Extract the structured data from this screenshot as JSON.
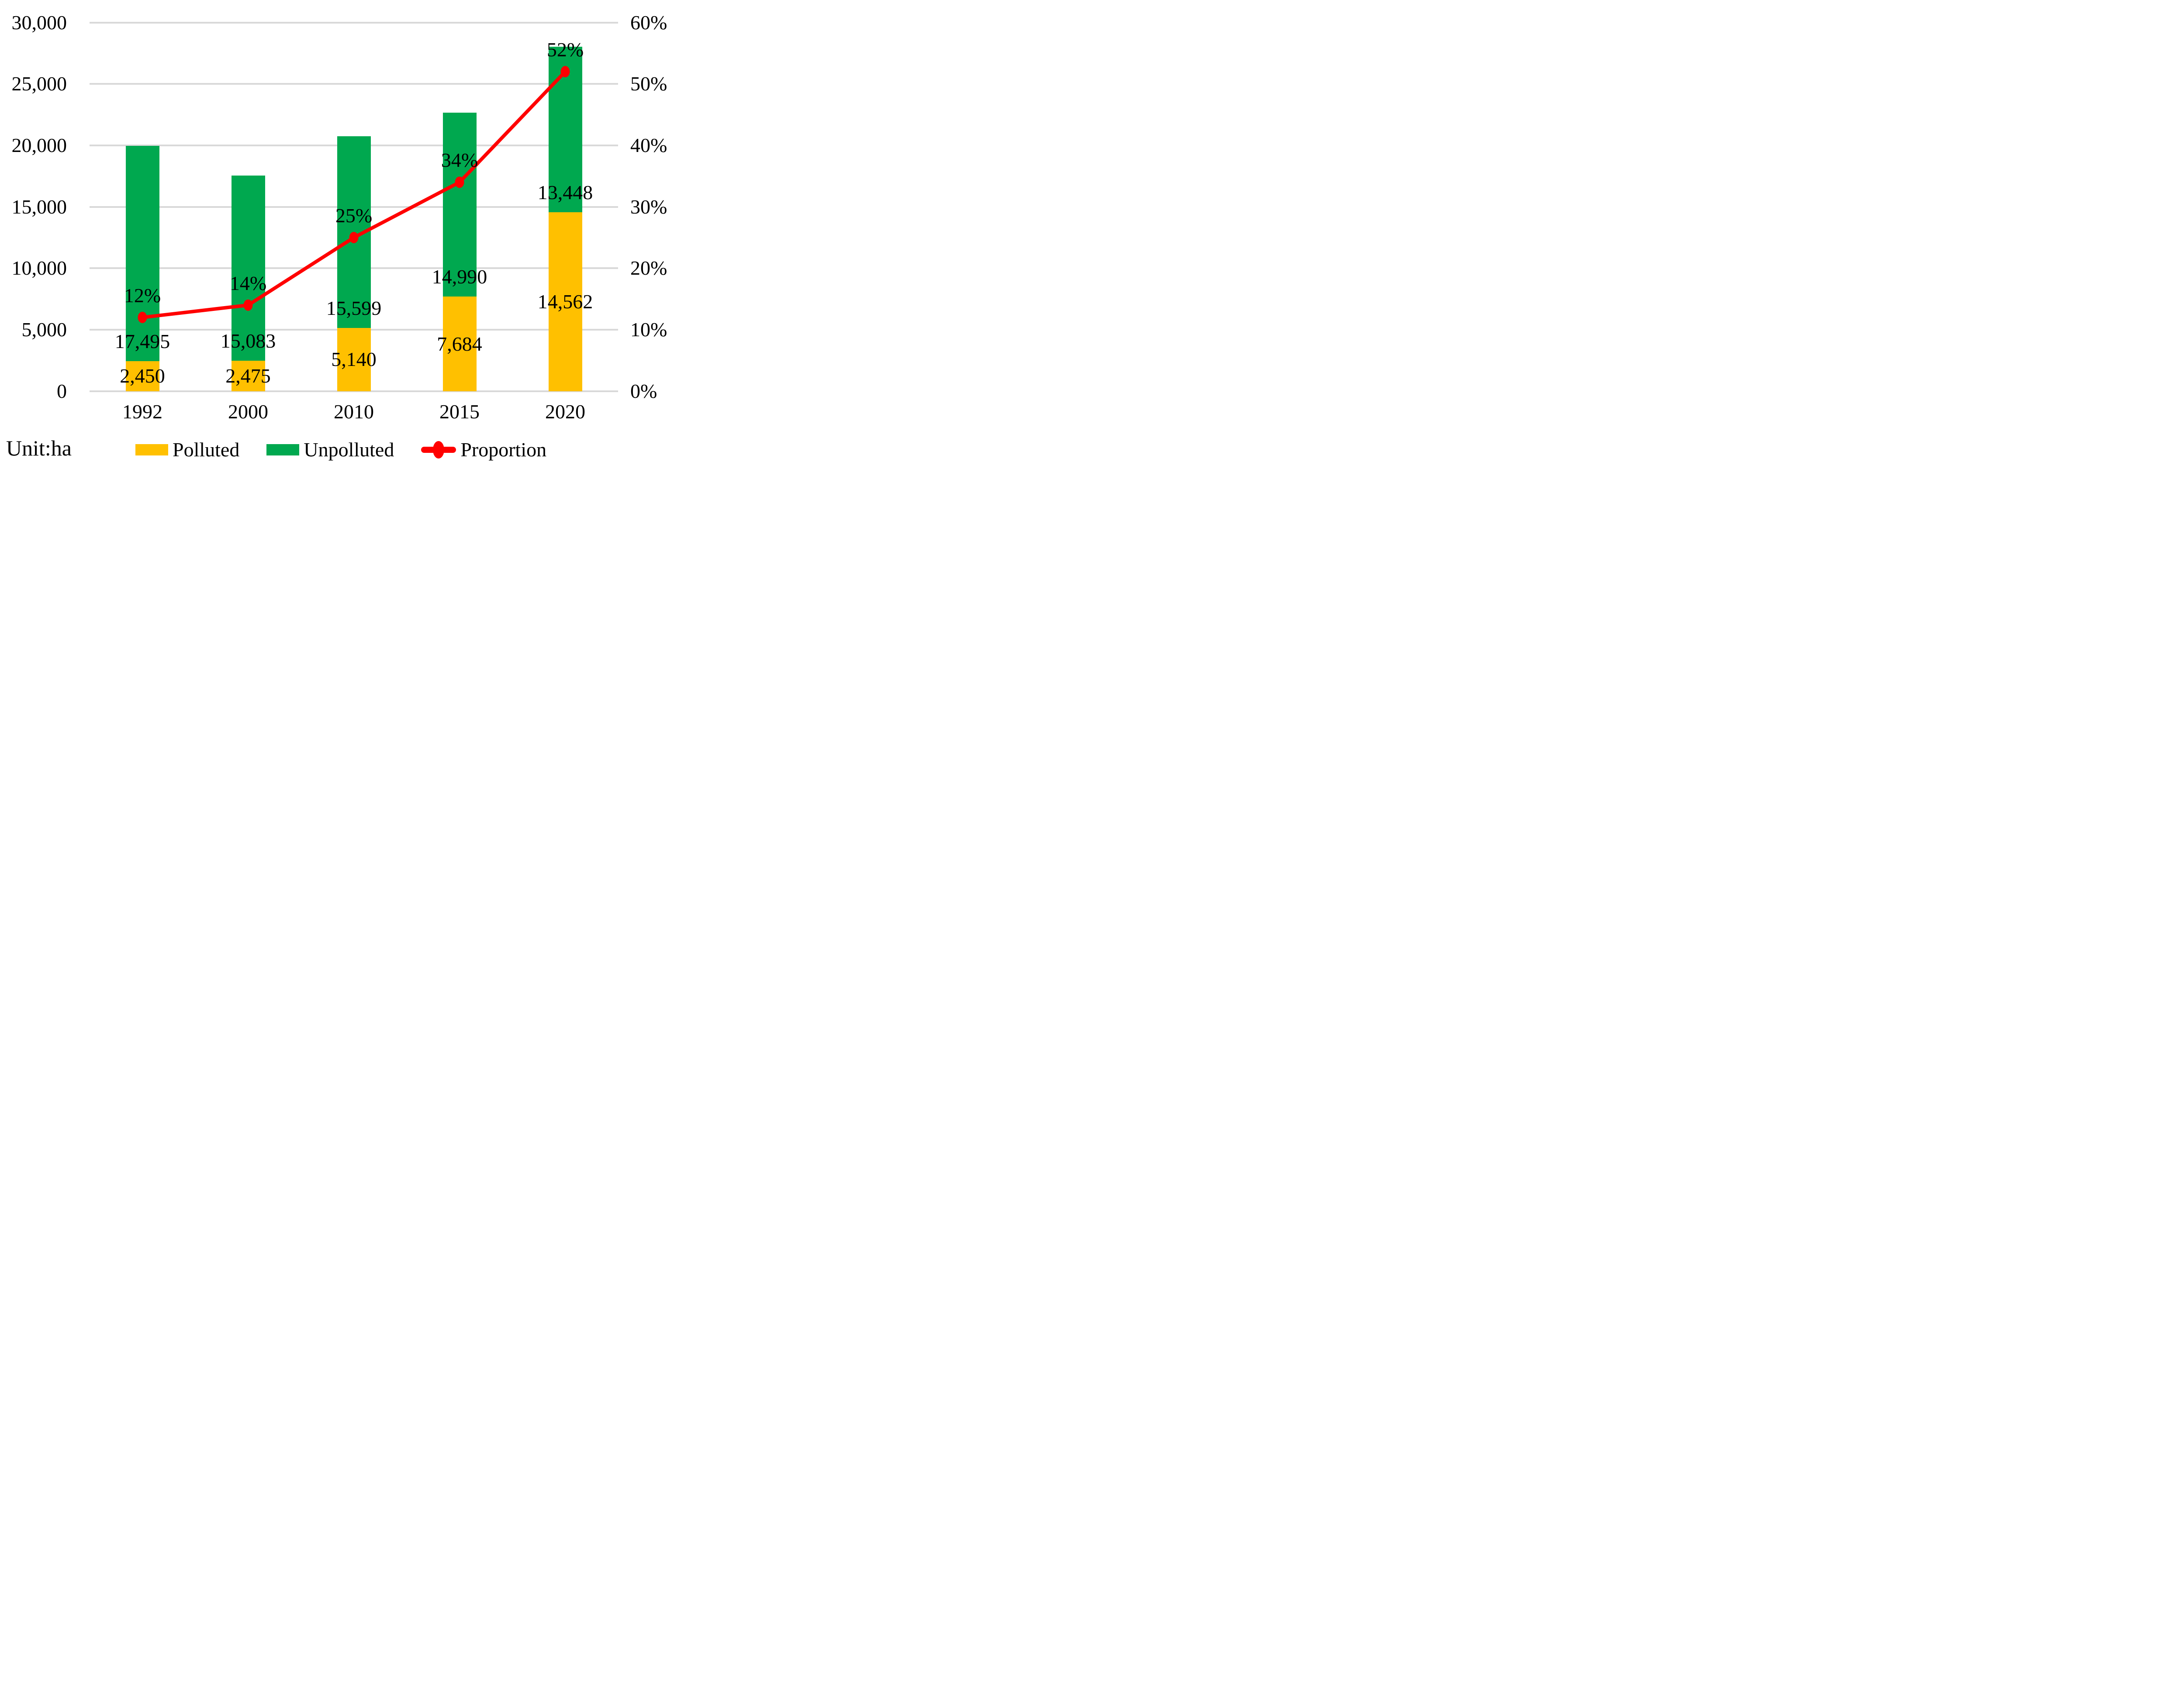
{
  "unit_label": "Unit:ha",
  "colors": {
    "polluted": "#FFC000",
    "unpolluted": "#00A84F",
    "proportion": "#FF0000",
    "gridline": "#D9D9D9",
    "text": "#000000",
    "background": "#FFFFFF"
  },
  "chart_data": {
    "type": "bar-line-combo",
    "categories": [
      "1992",
      "2000",
      "2010",
      "2015",
      "2020"
    ],
    "series": [
      {
        "name": "Polluted",
        "type": "bar",
        "stacked": true,
        "color": "#FFC000",
        "values": [
          2450,
          2475,
          5140,
          7684,
          14562
        ],
        "labels": [
          "2,450",
          "2,475",
          "5,140",
          "7,684",
          "14,562"
        ],
        "label_position": "segment-center"
      },
      {
        "name": "Unpolluted",
        "type": "bar",
        "stacked": true,
        "color": "#00A84F",
        "values": [
          17495,
          15083,
          15599,
          14990,
          13448
        ],
        "labels": [
          "17,495",
          "15,083",
          "15,599",
          "14,990",
          "13,448"
        ],
        "label_position": "inside-base"
      },
      {
        "name": "Proportion",
        "type": "line",
        "axis": "right",
        "color": "#FF0000",
        "values": [
          12,
          14,
          25,
          34,
          52
        ],
        "labels": [
          "12%",
          "14%",
          "25%",
          "34%",
          "52%"
        ],
        "label_position": "above-point"
      }
    ],
    "left_axis": {
      "min": 0,
      "max": 30000,
      "step": 5000,
      "tick_labels": [
        "30,000",
        "25,000",
        "20,000",
        "15,000",
        "10,000",
        "5,000",
        "0"
      ]
    },
    "right_axis": {
      "min": 0,
      "max": 60,
      "step": 10,
      "tick_labels": [
        "60%",
        "50%",
        "40%",
        "30%",
        "20%",
        "10%",
        "0%"
      ]
    },
    "grid": true,
    "legend_position": "bottom",
    "legend": [
      {
        "label": "Polluted",
        "swatch": "bar",
        "color": "#FFC000"
      },
      {
        "label": "Unpolluted",
        "swatch": "bar",
        "color": "#00A84F"
      },
      {
        "label": "Proportion",
        "swatch": "line-marker",
        "color": "#FF0000"
      }
    ],
    "xlabel": "",
    "ylabel_note": "Unit:ha"
  }
}
